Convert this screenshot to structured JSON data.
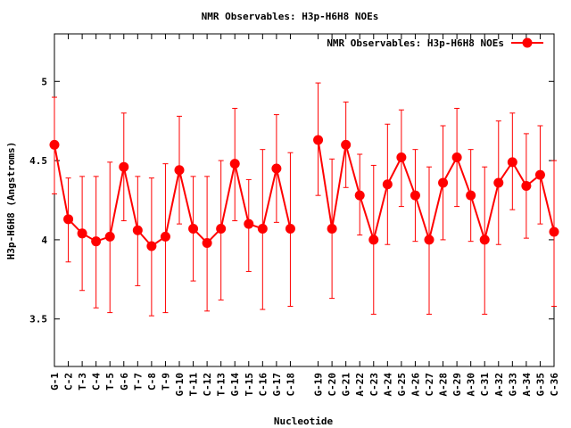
{
  "chart_data": {
    "type": "line",
    "title": "NMR Observables: H3p-H6H8 NOEs",
    "xlabel": "Nucleotide",
    "ylabel": "H3p-H6H8 (Angstroms)",
    "ylim": [
      3.2,
      5.3
    ],
    "yticks": [
      3.5,
      4,
      4.5,
      5
    ],
    "ytick_labels": [
      "3.5",
      "4",
      "4.5",
      "5"
    ],
    "grid": false,
    "legend_position": "top-right",
    "categories": [
      "G-1",
      "C-2",
      "T-3",
      "C-4",
      "T-5",
      "G-6",
      "T-7",
      "C-8",
      "T-9",
      "G-10",
      "T-11",
      "C-12",
      "T-13",
      "G-14",
      "T-15",
      "C-16",
      "G-17",
      "C-18",
      "G-19",
      "C-20",
      "G-21",
      "A-22",
      "C-23",
      "A-24",
      "G-25",
      "A-26",
      "C-27",
      "A-28",
      "G-29",
      "A-30",
      "C-31",
      "A-32",
      "G-33",
      "A-34",
      "G-35",
      "C-36"
    ],
    "positions": [
      1,
      2,
      3,
      4,
      5,
      6,
      7,
      8,
      9,
      10,
      11,
      12,
      13,
      14,
      15,
      16,
      17,
      18,
      20,
      21,
      22,
      23,
      24,
      25,
      26,
      27,
      28,
      29,
      30,
      31,
      32,
      33,
      34,
      35,
      36,
      37
    ],
    "xlim": [
      1,
      37
    ],
    "series": [
      {
        "name": "NMR Observables: H3p-H6H8 NOEs",
        "color": "#ff0000",
        "segments": [
          [
            0,
            17
          ],
          [
            18,
            35
          ]
        ],
        "values": [
          4.6,
          4.13,
          4.04,
          3.99,
          4.02,
          4.46,
          4.06,
          3.96,
          4.02,
          4.44,
          4.07,
          3.98,
          4.07,
          4.48,
          4.1,
          4.07,
          4.45,
          4.07,
          4.63,
          4.07,
          4.6,
          4.28,
          4.0,
          4.35,
          4.52,
          4.28,
          4.0,
          4.36,
          4.52,
          4.28,
          4.0,
          4.36,
          4.49,
          4.34,
          4.41,
          4.05
        ],
        "err_low": [
          4.29,
          3.86,
          3.68,
          3.57,
          3.54,
          4.12,
          3.71,
          3.52,
          3.54,
          4.1,
          3.74,
          3.55,
          3.62,
          4.12,
          3.8,
          3.56,
          4.11,
          3.58,
          4.28,
          3.63,
          4.33,
          4.03,
          3.53,
          3.97,
          4.21,
          3.99,
          3.53,
          4.0,
          4.21,
          3.99,
          3.53,
          3.97,
          4.19,
          4.01,
          4.1,
          3.58
        ],
        "err_high": [
          4.9,
          4.39,
          4.4,
          4.4,
          4.49,
          4.8,
          4.4,
          4.39,
          4.48,
          4.78,
          4.4,
          4.4,
          4.5,
          4.83,
          4.38,
          4.57,
          4.79,
          4.55,
          4.99,
          4.51,
          4.87,
          4.54,
          4.47,
          4.73,
          4.82,
          4.57,
          4.46,
          4.72,
          4.83,
          4.57,
          4.46,
          4.75,
          4.8,
          4.67,
          4.72,
          4.5
        ]
      }
    ]
  }
}
